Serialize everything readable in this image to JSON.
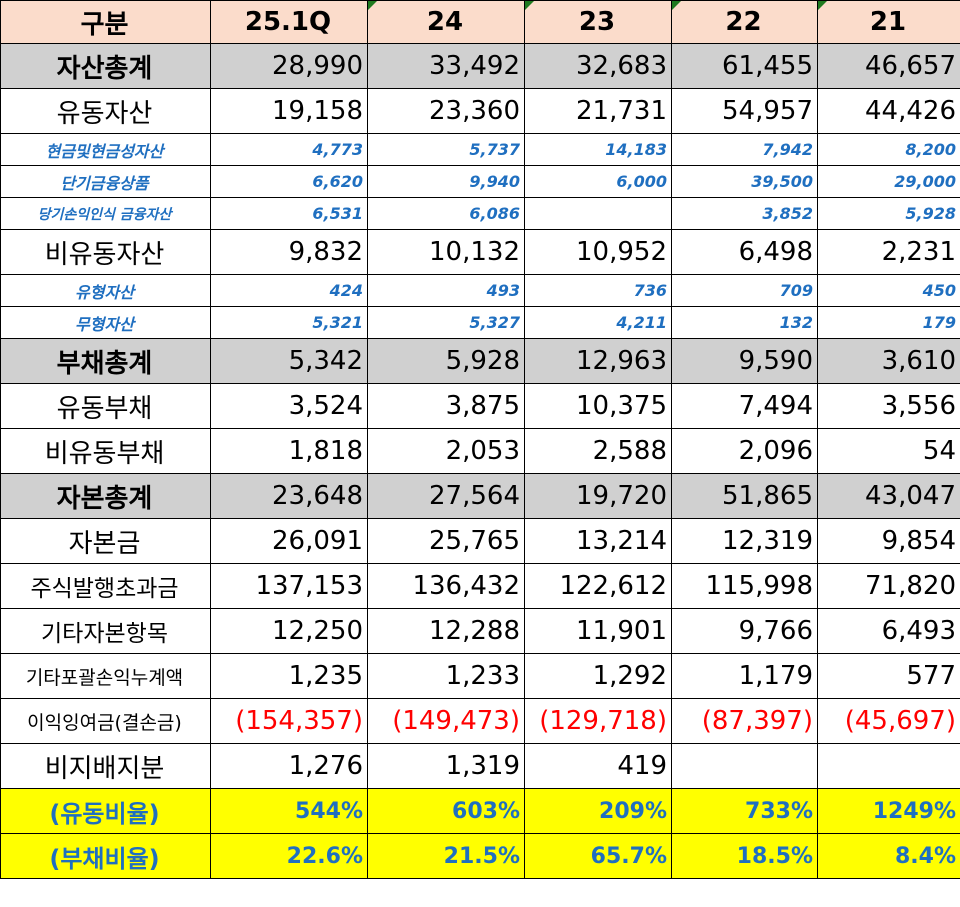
{
  "header": [
    "구분",
    "25.1Q",
    "24",
    "23",
    "22",
    "21"
  ],
  "rows": [
    {
      "label": "자산총계",
      "values": [
        "28,990",
        "33,492",
        "32,683",
        "61,455",
        "46,657"
      ]
    },
    {
      "label": "유동자산",
      "values": [
        "19,158",
        "23,360",
        "21,731",
        "54,957",
        "44,426"
      ]
    },
    {
      "label": "현금및현금성자산",
      "values": [
        "4,773",
        "5,737",
        "14,183",
        "7,942",
        "8,200"
      ]
    },
    {
      "label": "단기금융상품",
      "values": [
        "6,620",
        "9,940",
        "6,000",
        "39,500",
        "29,000"
      ]
    },
    {
      "label": "당기손익인식 금융자산",
      "values": [
        "6,531",
        "6,086",
        "",
        "3,852",
        "5,928"
      ]
    },
    {
      "label": "비유동자산",
      "values": [
        "9,832",
        "10,132",
        "10,952",
        "6,498",
        "2,231"
      ]
    },
    {
      "label": "유형자산",
      "values": [
        "424",
        "493",
        "736",
        "709",
        "450"
      ]
    },
    {
      "label": "무형자산",
      "values": [
        "5,321",
        "5,327",
        "4,211",
        "132",
        "179"
      ]
    },
    {
      "label": "부채총계",
      "values": [
        "5,342",
        "5,928",
        "12,963",
        "9,590",
        "3,610"
      ]
    },
    {
      "label": "유동부채",
      "values": [
        "3,524",
        "3,875",
        "10,375",
        "7,494",
        "3,556"
      ]
    },
    {
      "label": "비유동부채",
      "values": [
        "1,818",
        "2,053",
        "2,588",
        "2,096",
        "54"
      ]
    },
    {
      "label": "자본총계",
      "values": [
        "23,648",
        "27,564",
        "19,720",
        "51,865",
        "43,047"
      ]
    },
    {
      "label": "자본금",
      "values": [
        "26,091",
        "25,765",
        "13,214",
        "12,319",
        "9,854"
      ]
    },
    {
      "label": "주식발행초과금",
      "values": [
        "137,153",
        "136,432",
        "122,612",
        "115,998",
        "71,820"
      ]
    },
    {
      "label": "기타자본항목",
      "values": [
        "12,250",
        "12,288",
        "11,901",
        "9,766",
        "6,493"
      ]
    },
    {
      "label": "기타포괄손익누계액",
      "values": [
        "1,235",
        "1,233",
        "1,292",
        "1,179",
        "577"
      ]
    },
    {
      "label": "이익잉여금(결손금)",
      "values": [
        "(154,357)",
        "(149,473)",
        "(129,718)",
        "(87,397)",
        "(45,697)"
      ]
    },
    {
      "label": "비지배지분",
      "values": [
        "1,276",
        "1,319",
        "419",
        "",
        ""
      ]
    },
    {
      "label": "(유동비율)",
      "values": [
        "544%",
        "603%",
        "209%",
        "733%",
        "1249%"
      ]
    },
    {
      "label": "(부채비율)",
      "values": [
        "22.6%",
        "21.5%",
        "65.7%",
        "18.5%",
        "8.4%"
      ]
    }
  ],
  "colors": {
    "header_bg": "#fbdccb",
    "total_bg": "#d0d0d0",
    "ratio_bg": "#ffff00",
    "sub_text": "#1f6fc0",
    "negative_text": "#ff0000"
  }
}
